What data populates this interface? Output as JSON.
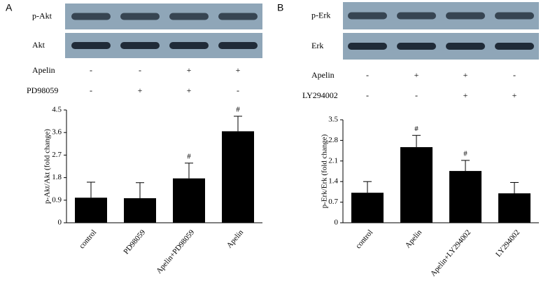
{
  "chart_data": [
    {
      "type": "bar",
      "panel_label": "A",
      "blot_labels": [
        "p-Akt",
        "Akt"
      ],
      "treatment_rows": [
        {
          "name": "Apelin",
          "marks": [
            "-",
            "-",
            "+",
            "+"
          ]
        },
        {
          "name": "PD98059",
          "marks": [
            "-",
            "+",
            "+",
            "-"
          ]
        }
      ],
      "y_label": "p-Akt/Akt (fold change)",
      "categories": [
        "control",
        "PD98059",
        "Apelin+PD98059",
        "Apelin"
      ],
      "values": [
        1.0,
        0.98,
        1.77,
        3.65
      ],
      "errors": [
        0.62,
        0.62,
        0.61,
        0.6
      ],
      "color": "#000000",
      "annotations": [
        {
          "category": "Apelin+PD98059",
          "text": "#"
        },
        {
          "category": "Apelin",
          "text": "#"
        }
      ],
      "ylim": [
        0,
        4.5
      ],
      "yticks": [
        0,
        0.9,
        1.8,
        2.7,
        3.6,
        4.5
      ]
    },
    {
      "type": "bar",
      "panel_label": "B",
      "blot_labels": [
        "p-Erk",
        "Erk"
      ],
      "treatment_rows": [
        {
          "name": "Apelin",
          "marks": [
            "-",
            "+",
            "+",
            "-"
          ]
        },
        {
          "name": "LY294002",
          "marks": [
            "-",
            "-",
            "+",
            "+"
          ]
        }
      ],
      "y_label": "p-Erk/Erk (fold change)",
      "categories": [
        "control",
        "Apelin",
        "Apelin+LY294002",
        "LY294002"
      ],
      "values": [
        1.02,
        2.57,
        1.76,
        1.0
      ],
      "errors": [
        0.38,
        0.4,
        0.36,
        0.37
      ],
      "color": "#000000",
      "annotations": [
        {
          "category": "Apelin",
          "text": "#"
        },
        {
          "category": "Apelin+LY294002",
          "text": "#"
        }
      ],
      "ylim": [
        0,
        3.5
      ],
      "yticks": [
        0,
        0.7,
        1.4,
        2.1,
        2.8,
        3.5
      ]
    }
  ]
}
